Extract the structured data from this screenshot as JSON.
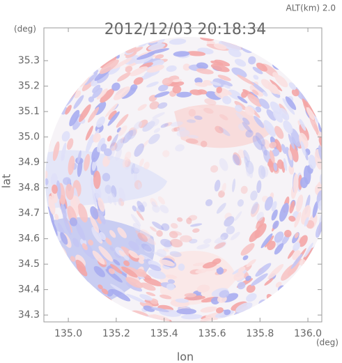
{
  "chart_data": {
    "type": "radar-image",
    "title": "2012/12/03 20:18:34",
    "altitude_label": "ALT(km) 2.0",
    "x_label": "lon",
    "y_label": "lat",
    "x_unit": "(deg)",
    "y_unit": "(deg)",
    "xlim": [
      134.898,
      136.058
    ],
    "ylim": [
      34.273,
      35.429
    ],
    "xticks": [
      {
        "value": 135.0,
        "label": "135.0"
      },
      {
        "value": 135.2,
        "label": "135.2"
      },
      {
        "value": 135.4,
        "label": "135.4"
      },
      {
        "value": 135.6,
        "label": "135.6"
      },
      {
        "value": 135.8,
        "label": "135.8"
      },
      {
        "value": 136.0,
        "label": "136.0"
      }
    ],
    "yticks": [
      {
        "value": 34.3,
        "label": "34.3"
      },
      34.4,
      34.5,
      34.6,
      34.7,
      34.8,
      34.9,
      {
        "value": 35.0,
        "label": "35.0"
      },
      35.1,
      35.2,
      35.3
    ]
  }
}
